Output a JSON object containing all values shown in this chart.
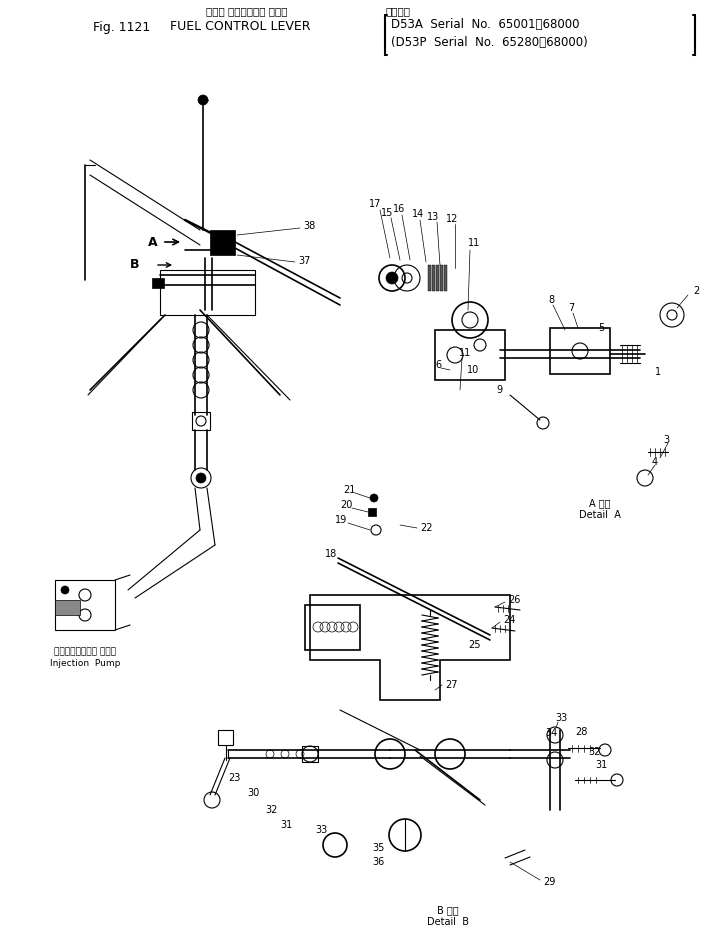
{
  "title_line1": "フェル コントロール レバー",
  "title_line2_fig": "Fig. 1121",
  "title_line2_name": "FUEL CONTROL LEVER",
  "title_right_line1": "適用号指",
  "title_right_line2": "D53A  Serial  No.  65001－68000",
  "title_right_line3": "(D53P  Serial  No.  65280－68000)",
  "detail_a_label": "A 詳圖\nDetail  A",
  "detail_b_label": "B 詳圖\nDetail  B",
  "injection_pump_label_jp": "インジェクション ポンプ",
  "injection_pump_label_en": "Injection  Pump",
  "bg_color": "#ffffff",
  "line_color": "#000000",
  "figsize": [
    7.17,
    9.31
  ],
  "dpi": 100
}
